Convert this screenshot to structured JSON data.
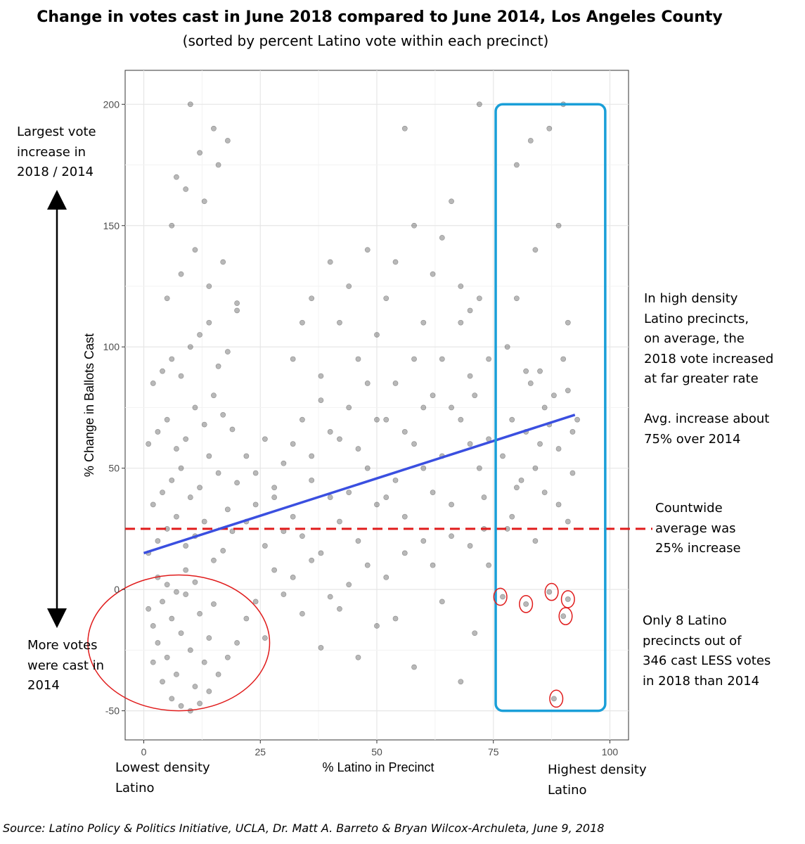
{
  "chart_data": {
    "type": "scatter",
    "title": "Change in votes cast in June 2018 compared to June 2014, Los Angeles County",
    "subtitle": "(sorted by percent Latino vote within each precinct)",
    "xlabel": "% Latino in Precinct",
    "ylabel": "% Change in Ballots Cast",
    "xlim": [
      -4,
      104
    ],
    "ylim": [
      -62,
      214
    ],
    "xticks": [
      0,
      25,
      50,
      75,
      100
    ],
    "yticks": [
      -50,
      0,
      50,
      100,
      150,
      200
    ],
    "grid": true,
    "trend_line": {
      "x": [
        0,
        92.5
      ],
      "y": [
        15,
        72
      ],
      "color": "#3a4fe0"
    },
    "reference_line": {
      "y": 25,
      "label": "Countwide average was 25% increase",
      "color": "#e01b1b",
      "style": "dashed"
    },
    "highlight_box": {
      "x": [
        75.5,
        99
      ],
      "y": [
        -50,
        200
      ],
      "color": "#1a9fd8"
    },
    "highlight_circles": [
      {
        "x": 7.5,
        "y": -22,
        "rx": 19.5,
        "ry": 28
      },
      {
        "x": 76.5,
        "y": -3,
        "rx": 1.4,
        "ry": 3.5
      },
      {
        "x": 82,
        "y": -6,
        "rx": 1.4,
        "ry": 3.5
      },
      {
        "x": 87.5,
        "y": -1,
        "rx": 1.4,
        "ry": 3.5
      },
      {
        "x": 91,
        "y": -4,
        "rx": 1.4,
        "ry": 3.5
      },
      {
        "x": 90.5,
        "y": -11,
        "rx": 1.4,
        "ry": 3.5
      },
      {
        "x": 88.5,
        "y": -45,
        "rx": 1.4,
        "ry": 3.5
      }
    ],
    "series": [
      {
        "points": [
          [
            1,
            -8
          ],
          [
            2,
            -15
          ],
          [
            3,
            -22
          ],
          [
            4,
            -5
          ],
          [
            5,
            -28
          ],
          [
            6,
            -12
          ],
          [
            7,
            -35
          ],
          [
            8,
            -18
          ],
          [
            9,
            -2
          ],
          [
            10,
            -25
          ],
          [
            11,
            -40
          ],
          [
            12,
            -10
          ],
          [
            13,
            -30
          ],
          [
            14,
            -20
          ],
          [
            15,
            -6
          ],
          [
            3,
            5
          ],
          [
            5,
            2
          ],
          [
            7,
            -1
          ],
          [
            9,
            8
          ],
          [
            11,
            3
          ],
          [
            2,
            -30
          ],
          [
            4,
            -38
          ],
          [
            6,
            -45
          ],
          [
            8,
            -48
          ],
          [
            10,
            -50
          ],
          [
            12,
            -47
          ],
          [
            14,
            -42
          ],
          [
            16,
            -35
          ],
          [
            18,
            -28
          ],
          [
            20,
            -22
          ],
          [
            1,
            15
          ],
          [
            3,
            20
          ],
          [
            5,
            25
          ],
          [
            7,
            30
          ],
          [
            9,
            18
          ],
          [
            11,
            22
          ],
          [
            13,
            28
          ],
          [
            15,
            12
          ],
          [
            17,
            16
          ],
          [
            19,
            24
          ],
          [
            2,
            35
          ],
          [
            4,
            40
          ],
          [
            6,
            45
          ],
          [
            8,
            50
          ],
          [
            10,
            38
          ],
          [
            12,
            42
          ],
          [
            14,
            55
          ],
          [
            16,
            48
          ],
          [
            18,
            33
          ],
          [
            20,
            44
          ],
          [
            1,
            60
          ],
          [
            3,
            65
          ],
          [
            5,
            70
          ],
          [
            7,
            58
          ],
          [
            9,
            62
          ],
          [
            11,
            75
          ],
          [
            13,
            68
          ],
          [
            15,
            80
          ],
          [
            17,
            72
          ],
          [
            19,
            66
          ],
          [
            2,
            85
          ],
          [
            4,
            90
          ],
          [
            6,
            95
          ],
          [
            8,
            88
          ],
          [
            10,
            100
          ],
          [
            12,
            105
          ],
          [
            14,
            110
          ],
          [
            16,
            92
          ],
          [
            18,
            98
          ],
          [
            20,
            115
          ],
          [
            5,
            120
          ],
          [
            8,
            130
          ],
          [
            11,
            140
          ],
          [
            14,
            125
          ],
          [
            17,
            135
          ],
          [
            20,
            118
          ],
          [
            6,
            150
          ],
          [
            9,
            165
          ],
          [
            13,
            160
          ],
          [
            16,
            175
          ],
          [
            12,
            180
          ],
          [
            15,
            190
          ],
          [
            10,
            200
          ],
          [
            18,
            185
          ],
          [
            7,
            170
          ],
          [
            22,
            28
          ],
          [
            24,
            35
          ],
          [
            26,
            18
          ],
          [
            28,
            42
          ],
          [
            30,
            24
          ],
          [
            22,
            55
          ],
          [
            24,
            48
          ],
          [
            26,
            62
          ],
          [
            28,
            38
          ],
          [
            30,
            52
          ],
          [
            22,
            -12
          ],
          [
            24,
            -5
          ],
          [
            26,
            -20
          ],
          [
            28,
            8
          ],
          [
            30,
            -2
          ],
          [
            32,
            30
          ],
          [
            34,
            22
          ],
          [
            36,
            45
          ],
          [
            38,
            15
          ],
          [
            40,
            38
          ],
          [
            32,
            60
          ],
          [
            34,
            70
          ],
          [
            36,
            55
          ],
          [
            38,
            78
          ],
          [
            40,
            65
          ],
          [
            32,
            5
          ],
          [
            34,
            -10
          ],
          [
            36,
            12
          ],
          [
            38,
            -24
          ],
          [
            40,
            -3
          ],
          [
            32,
            95
          ],
          [
            34,
            110
          ],
          [
            36,
            120
          ],
          [
            38,
            88
          ],
          [
            40,
            135
          ],
          [
            42,
            28
          ],
          [
            44,
            40
          ],
          [
            46,
            20
          ],
          [
            48,
            50
          ],
          [
            50,
            35
          ],
          [
            42,
            62
          ],
          [
            44,
            75
          ],
          [
            46,
            58
          ],
          [
            48,
            85
          ],
          [
            50,
            70
          ],
          [
            42,
            -8
          ],
          [
            44,
            2
          ],
          [
            46,
            -28
          ],
          [
            48,
            10
          ],
          [
            50,
            -15
          ],
          [
            42,
            110
          ],
          [
            44,
            125
          ],
          [
            46,
            95
          ],
          [
            48,
            140
          ],
          [
            50,
            105
          ],
          [
            52,
            38
          ],
          [
            54,
            45
          ],
          [
            56,
            30
          ],
          [
            58,
            60
          ],
          [
            60,
            50
          ],
          [
            52,
            70
          ],
          [
            54,
            85
          ],
          [
            56,
            65
          ],
          [
            58,
            95
          ],
          [
            60,
            75
          ],
          [
            52,
            5
          ],
          [
            54,
            -12
          ],
          [
            56,
            15
          ],
          [
            58,
            -32
          ],
          [
            60,
            20
          ],
          [
            52,
            120
          ],
          [
            54,
            135
          ],
          [
            56,
            190
          ],
          [
            58,
            150
          ],
          [
            60,
            110
          ],
          [
            62,
            40
          ],
          [
            64,
            55
          ],
          [
            66,
            35
          ],
          [
            68,
            70
          ],
          [
            70,
            60
          ],
          [
            62,
            80
          ],
          [
            64,
            95
          ],
          [
            66,
            75
          ],
          [
            68,
            110
          ],
          [
            70,
            88
          ],
          [
            62,
            10
          ],
          [
            64,
            -5
          ],
          [
            66,
            22
          ],
          [
            68,
            -38
          ],
          [
            70,
            18
          ],
          [
            62,
            130
          ],
          [
            64,
            145
          ],
          [
            66,
            160
          ],
          [
            68,
            125
          ],
          [
            70,
            115
          ],
          [
            72,
            50
          ],
          [
            74,
            62
          ],
          [
            73,
            38
          ],
          [
            71,
            80
          ],
          [
            74,
            95
          ],
          [
            72,
            200
          ],
          [
            73,
            25
          ],
          [
            71,
            -18
          ],
          [
            74,
            10
          ],
          [
            72,
            120
          ],
          [
            77,
            55
          ],
          [
            79,
            70
          ],
          [
            81,
            45
          ],
          [
            83,
            85
          ],
          [
            85,
            60
          ],
          [
            78,
            100
          ],
          [
            80,
            120
          ],
          [
            82,
            90
          ],
          [
            84,
            140
          ],
          [
            86,
            75
          ],
          [
            77,
            -3
          ],
          [
            82,
            -6
          ],
          [
            87,
            -1
          ],
          [
            91,
            -4
          ],
          [
            90,
            -11
          ],
          [
            88,
            -45
          ],
          [
            79,
            30
          ],
          [
            84,
            20
          ],
          [
            89,
            35
          ],
          [
            91,
            28
          ],
          [
            87,
            190
          ],
          [
            90,
            200
          ],
          [
            83,
            185
          ],
          [
            80,
            175
          ],
          [
            89,
            150
          ],
          [
            91,
            110
          ],
          [
            92,
            65
          ],
          [
            93,
            70
          ],
          [
            88,
            80
          ],
          [
            90,
            95
          ],
          [
            86,
            40
          ],
          [
            84,
            50
          ],
          [
            82,
            65
          ],
          [
            80,
            42
          ],
          [
            78,
            25
          ],
          [
            92,
            48
          ],
          [
            89,
            58
          ],
          [
            87,
            68
          ],
          [
            85,
            90
          ],
          [
            91,
            82
          ]
        ]
      }
    ],
    "annotations": [
      {
        "id": "top",
        "text": "Largest vote\nincrease in\n2018 / 2014"
      },
      {
        "id": "bottom",
        "text": "More votes\nwere cast in\n2014"
      },
      {
        "id": "right-high",
        "text": "In high density\nLatino precincts,\non average, the\n2018 vote increased\nat far greater rate"
      },
      {
        "id": "right-avg",
        "text": "Avg. increase about\n75% over 2014"
      },
      {
        "id": "right-mid",
        "text": "Countwide\naverage was\n25% increase"
      },
      {
        "id": "right-low",
        "text": "Only 8 Latino\nprecincts out of\n346 cast LESS votes\nin 2018 than 2014"
      },
      {
        "id": "x-left",
        "text": "Lowest density\nLatino"
      },
      {
        "id": "x-right",
        "text": "Highest density\nLatino"
      }
    ],
    "source": "Source: Latino Policy & Politics Initiative, UCLA, Dr. Matt A. Barreto & Bryan Wilcox-Archuleta, June 9, 2018"
  }
}
